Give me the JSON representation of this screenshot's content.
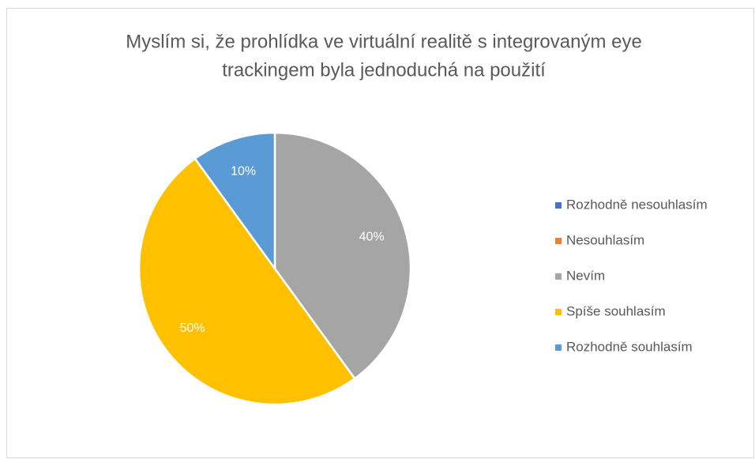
{
  "chart_data": {
    "type": "pie",
    "title": [
      "Myslím si, že prohlídka ve virtuální realitě s integrovaným eye",
      "trackingem byla jednoduchá na použití"
    ],
    "categories": [
      "Rozhodně nesouhlasím",
      "Nesouhlasím",
      "Nevím",
      "Spíše souhlasím",
      "Rozhodně souhlasím"
    ],
    "values": [
      0,
      0,
      40,
      50,
      10
    ],
    "value_labels": [
      null,
      null,
      "40%",
      "50%",
      "10%"
    ],
    "colors": [
      "#4472c4",
      "#ed7d31",
      "#a5a5a5",
      "#ffc000",
      "#5b9bd5"
    ],
    "legend": "right"
  }
}
